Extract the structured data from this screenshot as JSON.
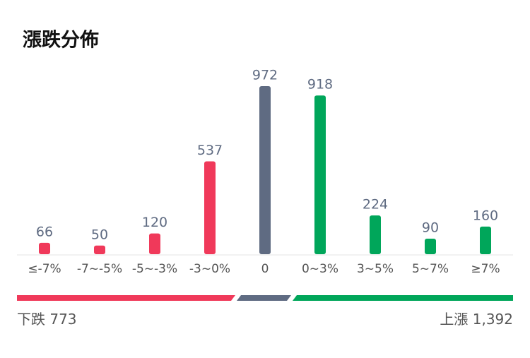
{
  "chart_data": {
    "type": "bar",
    "title": "漲跌分佈",
    "categories": [
      "≤-7%",
      "-7~-5%",
      "-5~-3%",
      "-3~0%",
      "0",
      "0~3%",
      "3~5%",
      "5~7%",
      "≥7%"
    ],
    "values": [
      66,
      50,
      120,
      537,
      972,
      918,
      224,
      90,
      160
    ],
    "colors": [
      "#f0395a",
      "#f0395a",
      "#f0395a",
      "#f0395a",
      "#5f6b82",
      "#00a65a",
      "#00a65a",
      "#00a65a",
      "#00a65a"
    ]
  },
  "summary": {
    "down": {
      "label": "下跌",
      "value": 773
    },
    "up": {
      "label": "上漲",
      "value": 1392,
      "value_label": "1,392"
    }
  }
}
